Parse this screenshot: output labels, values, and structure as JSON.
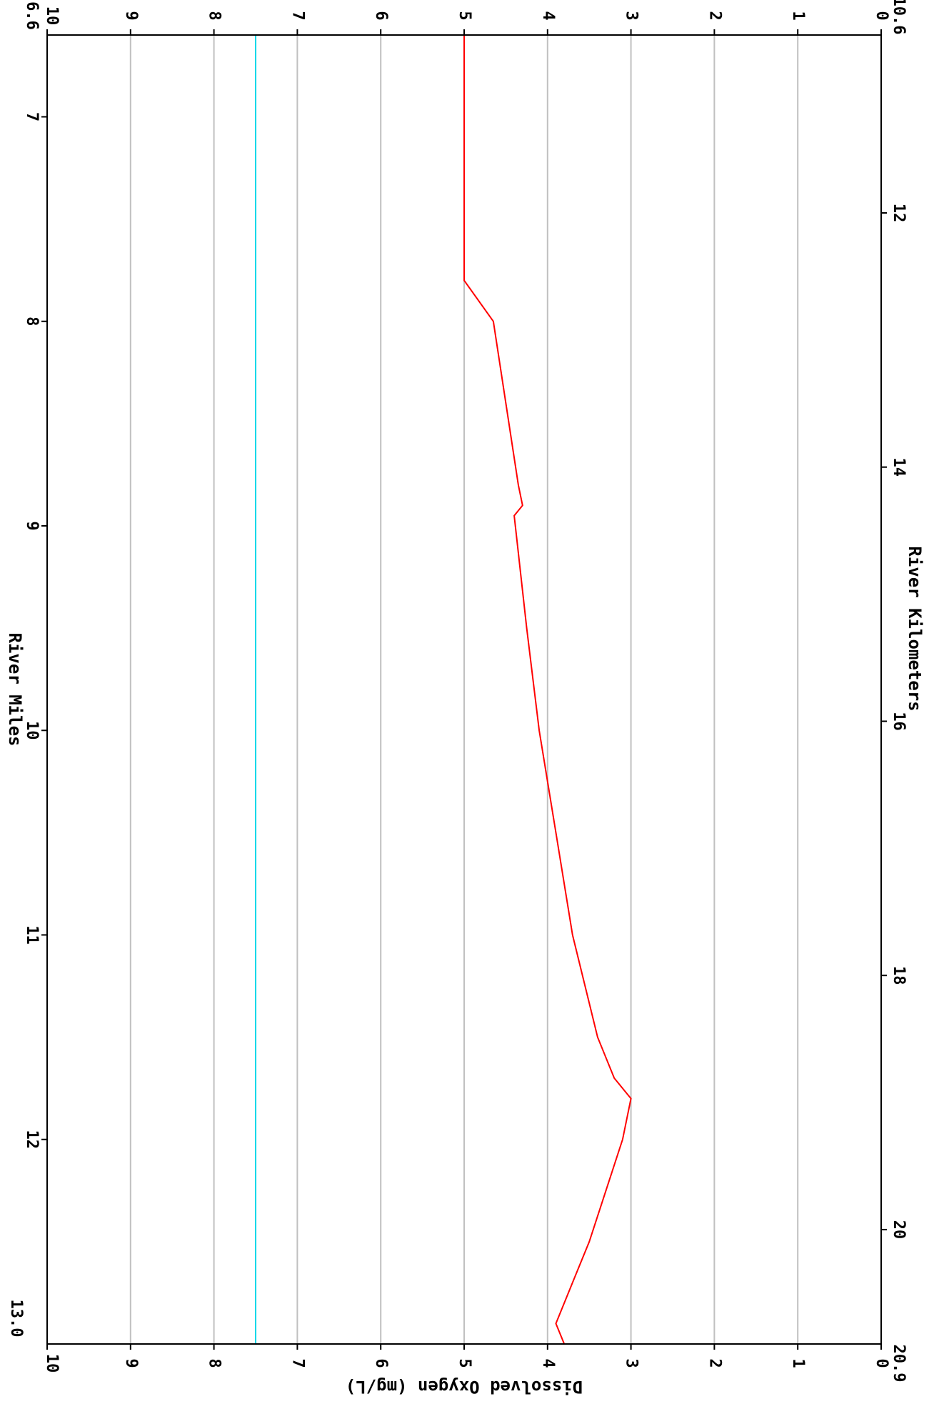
{
  "chart_data": {
    "type": "line",
    "orientation": "rotated-90-clockwise",
    "title": "",
    "ylabel": "Dissolved Oxygen (mg/L)",
    "x_top_label": "River Miles",
    "x_bottom_label": "River Kilometers",
    "ylim": [
      0,
      10
    ],
    "y_ticks": [
      "0",
      "1",
      "2",
      "3",
      "4",
      "5",
      "6",
      "7",
      "8",
      "9",
      "10"
    ],
    "miles_range": [
      6.6,
      13.0
    ],
    "miles_range_labels": [
      "6.6",
      "13.0"
    ],
    "mile_ticks": [
      "7",
      "8",
      "9",
      "10",
      "11",
      "12"
    ],
    "km_range": [
      10.6,
      20.9
    ],
    "km_range_labels": [
      "10.6",
      "20.9"
    ],
    "km_ticks": [
      "12",
      "14",
      "16",
      "18",
      "20"
    ],
    "grid": true,
    "standard_line": {
      "value": 7.5,
      "color": "#00d8e8"
    },
    "series": [
      {
        "color": "#ff0000",
        "x_miles": [
          6.6,
          7.0,
          7.5,
          7.8,
          8.0,
          8.4,
          8.8,
          8.9,
          8.95,
          9.5,
          10.0,
          10.5,
          11.0,
          11.5,
          11.7,
          11.8,
          12.0,
          12.5,
          12.7,
          12.9,
          13.0
        ],
        "values": [
          5.0,
          5.0,
          5.0,
          5.0,
          4.65,
          4.5,
          4.35,
          4.3,
          4.4,
          4.25,
          4.1,
          3.9,
          3.7,
          3.4,
          3.2,
          3.0,
          3.1,
          3.5,
          3.7,
          3.9,
          3.8
        ]
      }
    ]
  }
}
